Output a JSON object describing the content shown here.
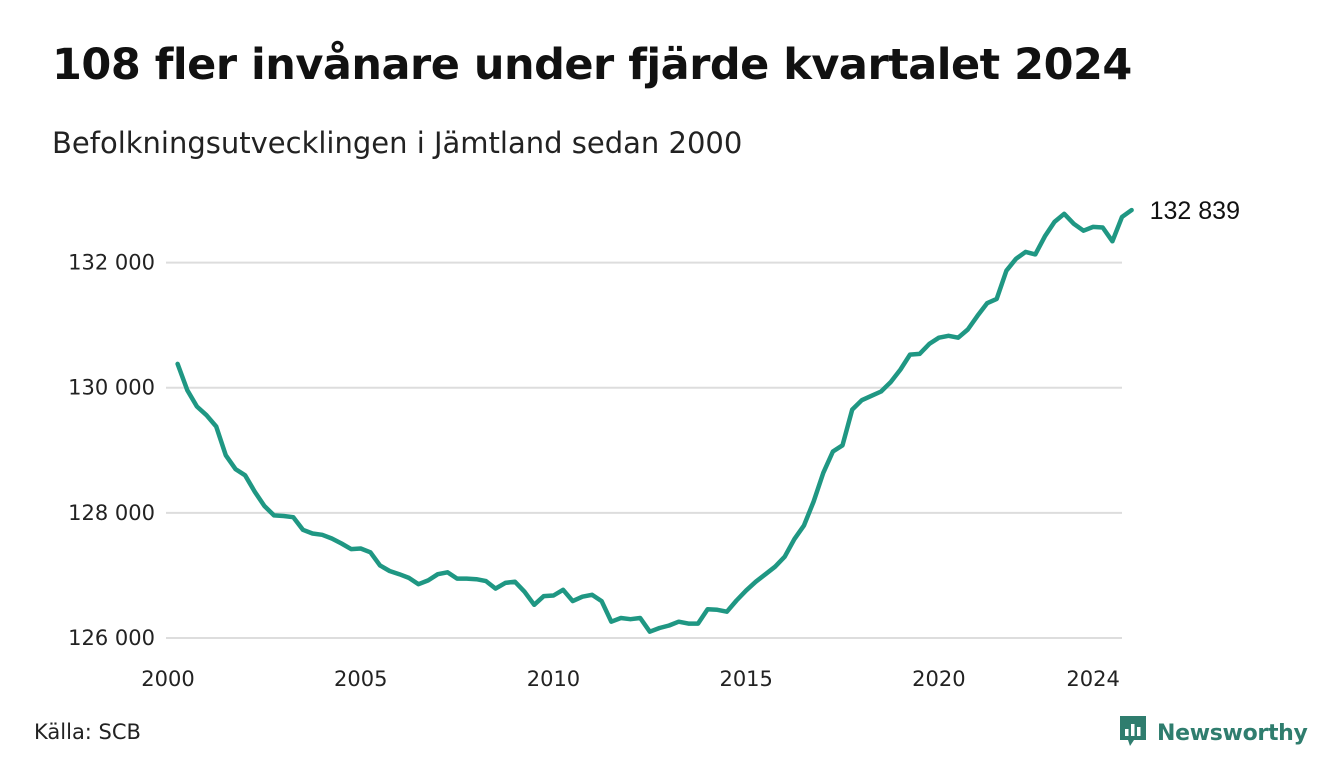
{
  "header": {
    "title": "108 fler invånare under fjärde kvartalet 2024",
    "subtitle": "Befolkningsutvecklingen i Jämtland sedan 2000"
  },
  "footer": {
    "source": "Källa: SCB",
    "brand": "Newsworthy",
    "brand_icon": "bar-chart-speech-icon",
    "brand_color": "#2f7d6e"
  },
  "colors": {
    "line": "#1f9783",
    "grid": "#dddddd"
  },
  "chart_data": {
    "type": "line",
    "title": "108 fler invånare under fjärde kvartalet 2024",
    "subtitle": "Befolkningsutvecklingen i Jämtland sedan 2000",
    "xlabel": "",
    "ylabel": "",
    "xlim": [
      2000,
      2024.75
    ],
    "ylim": [
      126000,
      133000
    ],
    "x_ticks": [
      2000,
      2005,
      2010,
      2015,
      2020,
      2024
    ],
    "x_tick_labels": [
      "2000",
      "2005",
      "2010",
      "2015",
      "2020",
      "2024"
    ],
    "y_ticks": [
      126000,
      128000,
      130000,
      132000
    ],
    "y_tick_labels": [
      "126 000",
      "128 000",
      "130 000",
      "132 000"
    ],
    "grid": "horizontal",
    "end_label": "132 839",
    "series": [
      {
        "frequency": "quarterly",
        "start": 2000.25,
        "values": [
          130380,
          129960,
          129700,
          129560,
          129380,
          128920,
          128700,
          128600,
          128340,
          128110,
          127960,
          127950,
          127930,
          127730,
          127670,
          127650,
          127590,
          127510,
          127420,
          127430,
          127370,
          127160,
          127070,
          127020,
          126960,
          126860,
          126920,
          127020,
          127050,
          126950,
          126950,
          126940,
          126910,
          126790,
          126880,
          126900,
          126740,
          126530,
          126670,
          126680,
          126770,
          126590,
          126660,
          126690,
          126590,
          126260,
          126320,
          126300,
          126320,
          126100,
          126160,
          126200,
          126260,
          126230,
          126230,
          126460,
          126450,
          126420,
          126600,
          126760,
          126900,
          127020,
          127140,
          127300,
          127580,
          127800,
          128180,
          128640,
          128980,
          129080,
          129650,
          129800,
          129870,
          129940,
          130090,
          130290,
          130530,
          130540,
          130700,
          130800,
          130830,
          130800,
          130930,
          131150,
          131350,
          131420,
          131870,
          132060,
          132170,
          132130,
          132420,
          132650,
          132780,
          132620,
          132510,
          132570,
          132560,
          132340,
          132730,
          132839
        ]
      }
    ]
  }
}
